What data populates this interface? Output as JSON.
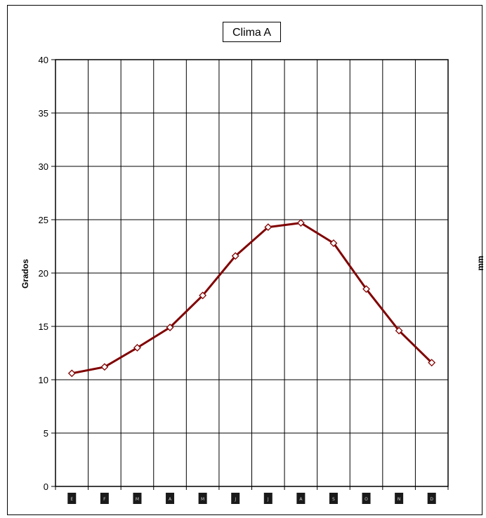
{
  "chart_data": {
    "type": "line",
    "title": "Clima A",
    "ylabel": "Grados",
    "y2label": "mm",
    "ylim": [
      0,
      40
    ],
    "yticks": [
      0,
      5,
      10,
      15,
      20,
      25,
      30,
      35,
      40
    ],
    "grid": true,
    "x": [
      "E",
      "F",
      "M",
      "A",
      "M",
      "J",
      "J",
      "A",
      "S",
      "O",
      "N",
      "D"
    ],
    "series": [
      {
        "values": [
          10.6,
          11.2,
          13.0,
          14.9,
          17.9,
          21.6,
          24.3,
          24.7,
          22.8,
          18.5,
          14.6,
          11.6
        ],
        "color": "#800000",
        "marker": "diamond-open"
      }
    ]
  }
}
